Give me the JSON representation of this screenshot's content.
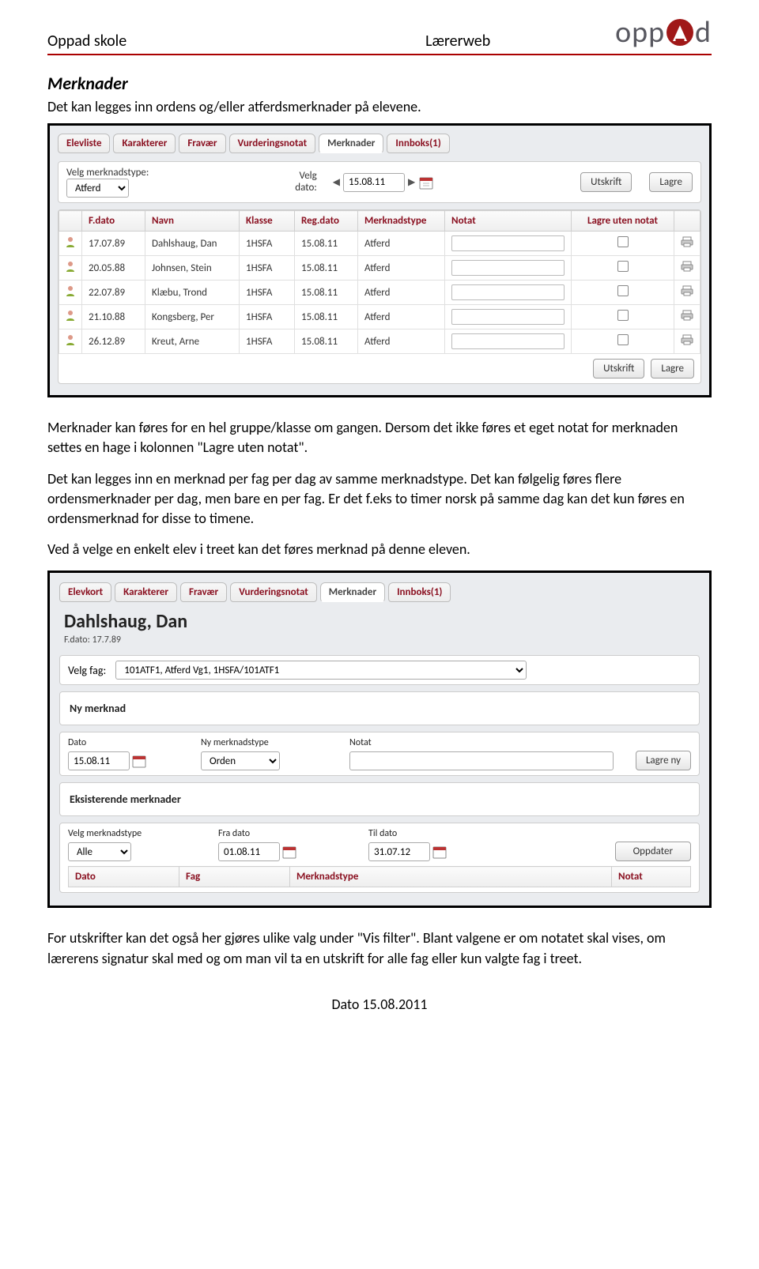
{
  "doc_header": {
    "left": "Oppad skole",
    "mid": "Lærerweb",
    "logo_parts": [
      "opp",
      "d"
    ]
  },
  "section_title": "Merknader",
  "intro_line": "Det kan legges inn ordens og/eller atferdsmerknader på elevene.",
  "screenshot1": {
    "tabs": [
      "Elevliste",
      "Karakterer",
      "Fravær",
      "Vurderingsnotat",
      "Merknader",
      "Innboks(1)"
    ],
    "active_tab_index": 4,
    "toolbar": {
      "merknadstype_label": "Velg merknadstype:",
      "merknadstype_value": "Atferd",
      "dato_label_line1": "Velg",
      "dato_label_line2": "dato:",
      "dato_value": "15.08.11",
      "utskrift_label": "Utskrift",
      "lagre_label": "Lagre"
    },
    "columns": [
      "",
      "F.dato",
      "Navn",
      "Klasse",
      "Reg.dato",
      "Merknadstype",
      "Notat",
      "Lagre uten notat",
      ""
    ],
    "rows": [
      {
        "fdato": "17.07.89",
        "navn": "Dahlshaug, Dan",
        "klasse": "1HSFA",
        "regdato": "15.08.11",
        "type": "Atferd"
      },
      {
        "fdato": "20.05.88",
        "navn": "Johnsen, Stein",
        "klasse": "1HSFA",
        "regdato": "15.08.11",
        "type": "Atferd"
      },
      {
        "fdato": "22.07.89",
        "navn": "Klæbu, Trond",
        "klasse": "1HSFA",
        "regdato": "15.08.11",
        "type": "Atferd"
      },
      {
        "fdato": "21.10.88",
        "navn": "Kongsberg, Per",
        "klasse": "1HSFA",
        "regdato": "15.08.11",
        "type": "Atferd"
      },
      {
        "fdato": "26.12.89",
        "navn": "Kreut, Arne",
        "klasse": "1HSFA",
        "regdato": "15.08.11",
        "type": "Atferd"
      }
    ]
  },
  "paragraph2a": "Merknader kan føres for en hel gruppe/klasse om gangen. Dersom det ikke føres et eget notat for merknaden settes en hage i kolonnen \"Lagre uten notat\".",
  "paragraph2b": "Det kan legges inn en merknad per fag per dag av samme merknadstype. Det kan følgelig føres flere ordensmerknader per dag, men bare en per fag. Er det f.eks to timer norsk på samme dag kan det kun føres en ordensmerknad for disse to timene.",
  "paragraph2c": "Ved å velge en enkelt elev i treet kan det føres merknad på denne eleven.",
  "screenshot2": {
    "tabs": [
      "Elevkort",
      "Karakterer",
      "Fravær",
      "Vurderingsnotat",
      "Merknader",
      "Innboks(1)"
    ],
    "active_tab_index": 4,
    "student_name": "Dahlshaug, Dan",
    "student_sub": "F.dato: 17.7.89",
    "velg_fag_label": "Velg fag:",
    "velg_fag_value": "101ATF1, Atferd Vg1, 1HSFA/101ATF1",
    "ny_merknad_title": "Ny merknad",
    "fields": {
      "dato_label": "Dato",
      "dato_value": "15.08.11",
      "type_label": "Ny merknadstype",
      "type_value": "Orden",
      "notat_label": "Notat",
      "lagre_ny_label": "Lagre ny"
    },
    "eksisterende_title": "Eksisterende merknader",
    "filter": {
      "type_label": "Velg merknadstype",
      "type_value": "Alle",
      "fra_label": "Fra dato",
      "fra_value": "01.08.11",
      "til_label": "Til dato",
      "til_value": "31.07.12",
      "oppdater_label": "Oppdater"
    },
    "exist_columns": [
      "Dato",
      "Fag",
      "Merknadstype",
      "Notat"
    ]
  },
  "paragraph3": "For utskrifter kan det også her gjøres ulike valg under \"Vis filter\". Blant valgene er om notatet skal vises, om lærerens signatur skal med og om man vil ta en utskrift for alle fag eller kun valgte fag i treet.",
  "page_footer": "Dato 15.08.2011",
  "colors": {
    "maroon": "#8a1020",
    "red_rule": "#a00000",
    "circle_red": "#a01818",
    "panel_border": "#cdcdcd"
  }
}
